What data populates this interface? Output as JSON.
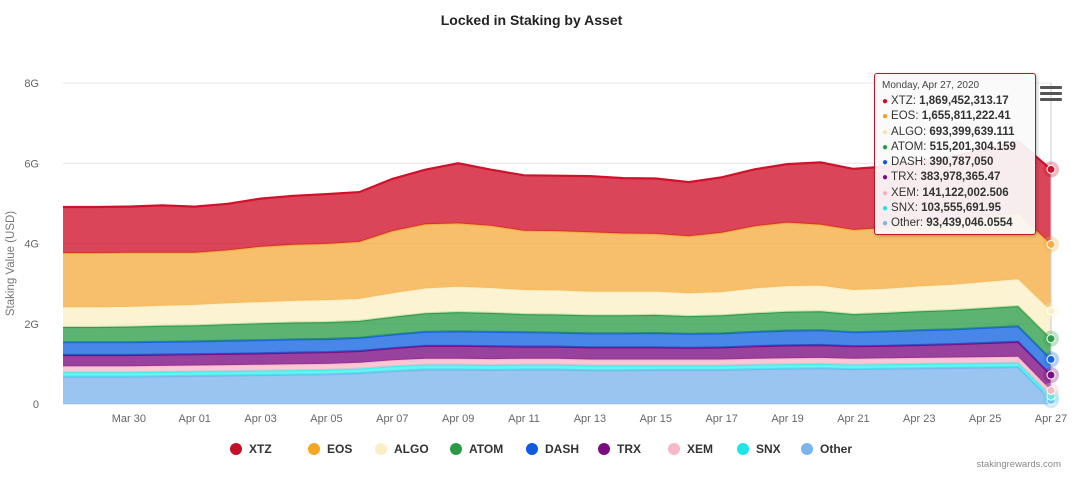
{
  "chart_data": {
    "type": "area",
    "stacked": true,
    "title": "Locked in Staking by Asset",
    "ylabel": "Staking Value (USD)",
    "xlabel": "",
    "ylim": [
      0,
      8000000000
    ],
    "y_ticks": [
      "0",
      "2G",
      "4G",
      "6G",
      "8G"
    ],
    "x_ticks": [
      "Mar 30",
      "Apr 01",
      "Apr 03",
      "Apr 05",
      "Apr 07",
      "Apr 09",
      "Apr 11",
      "Apr 13",
      "Apr 15",
      "Apr 17",
      "Apr 19",
      "Apr 21",
      "Apr 23",
      "Apr 25",
      "Apr 27"
    ],
    "x": [
      "Mar 28",
      "Mar 29",
      "Mar 30",
      "Mar 31",
      "Apr 01",
      "Apr 02",
      "Apr 03",
      "Apr 04",
      "Apr 05",
      "Apr 06",
      "Apr 07",
      "Apr 08",
      "Apr 09",
      "Apr 10",
      "Apr 11",
      "Apr 12",
      "Apr 13",
      "Apr 14",
      "Apr 15",
      "Apr 16",
      "Apr 17",
      "Apr 18",
      "Apr 19",
      "Apr 20",
      "Apr 21",
      "Apr 22",
      "Apr 23",
      "Apr 24",
      "Apr 25",
      "Apr 26",
      "Apr 27"
    ],
    "grid": true,
    "legend_position": "bottom",
    "series": [
      {
        "name": "Other",
        "color": "#7cb5ec",
        "values": [
          0.68,
          0.68,
          0.68,
          0.69,
          0.7,
          0.71,
          0.72,
          0.73,
          0.74,
          0.77,
          0.82,
          0.86,
          0.86,
          0.85,
          0.86,
          0.86,
          0.84,
          0.84,
          0.85,
          0.85,
          0.85,
          0.87,
          0.88,
          0.89,
          0.87,
          0.88,
          0.89,
          0.9,
          0.91,
          0.92,
          0.093
        ]
      },
      {
        "name": "SNX",
        "color": "#3df0f0",
        "values": [
          0.11,
          0.11,
          0.11,
          0.11,
          0.11,
          0.11,
          0.11,
          0.11,
          0.11,
          0.11,
          0.12,
          0.12,
          0.12,
          0.12,
          0.12,
          0.12,
          0.12,
          0.12,
          0.11,
          0.11,
          0.11,
          0.11,
          0.11,
          0.11,
          0.11,
          0.11,
          0.11,
          0.11,
          0.11,
          0.11,
          0.104
        ]
      },
      {
        "name": "XEM",
        "color": "#f7b8c8",
        "values": [
          0.15,
          0.15,
          0.15,
          0.15,
          0.15,
          0.15,
          0.15,
          0.15,
          0.15,
          0.15,
          0.15,
          0.15,
          0.15,
          0.15,
          0.15,
          0.15,
          0.15,
          0.15,
          0.15,
          0.15,
          0.15,
          0.15,
          0.15,
          0.15,
          0.15,
          0.15,
          0.15,
          0.15,
          0.15,
          0.15,
          0.141
        ]
      },
      {
        "name": "TRX",
        "color": "#7b0d82",
        "values": [
          0.28,
          0.28,
          0.28,
          0.28,
          0.28,
          0.28,
          0.28,
          0.29,
          0.29,
          0.29,
          0.3,
          0.32,
          0.32,
          0.32,
          0.3,
          0.3,
          0.3,
          0.3,
          0.3,
          0.29,
          0.3,
          0.31,
          0.32,
          0.32,
          0.31,
          0.31,
          0.32,
          0.33,
          0.35,
          0.37,
          0.384
        ]
      },
      {
        "name": "DASH",
        "color": "#1565e0",
        "values": [
          0.32,
          0.32,
          0.32,
          0.32,
          0.32,
          0.33,
          0.33,
          0.33,
          0.33,
          0.33,
          0.34,
          0.35,
          0.36,
          0.36,
          0.36,
          0.35,
          0.35,
          0.35,
          0.36,
          0.35,
          0.35,
          0.36,
          0.37,
          0.37,
          0.35,
          0.36,
          0.37,
          0.37,
          0.38,
          0.39,
          0.391
        ]
      },
      {
        "name": "ATOM",
        "color": "#2e9e4a",
        "values": [
          0.38,
          0.38,
          0.39,
          0.4,
          0.4,
          0.41,
          0.42,
          0.42,
          0.42,
          0.42,
          0.44,
          0.46,
          0.48,
          0.47,
          0.45,
          0.45,
          0.45,
          0.45,
          0.45,
          0.44,
          0.45,
          0.46,
          0.47,
          0.47,
          0.45,
          0.46,
          0.47,
          0.48,
          0.49,
          0.5,
          0.515
        ]
      },
      {
        "name": "ALGO",
        "color": "#fbefc7",
        "values": [
          0.49,
          0.49,
          0.49,
          0.5,
          0.51,
          0.52,
          0.53,
          0.54,
          0.55,
          0.55,
          0.59,
          0.62,
          0.63,
          0.62,
          0.6,
          0.6,
          0.59,
          0.59,
          0.58,
          0.57,
          0.58,
          0.62,
          0.64,
          0.64,
          0.6,
          0.6,
          0.62,
          0.63,
          0.65,
          0.67,
          0.693
        ]
      },
      {
        "name": "EOS",
        "color": "#f5ad41",
        "values": [
          1.35,
          1.35,
          1.35,
          1.32,
          1.3,
          1.32,
          1.38,
          1.4,
          1.4,
          1.42,
          1.55,
          1.6,
          1.58,
          1.55,
          1.48,
          1.48,
          1.48,
          1.45,
          1.44,
          1.42,
          1.48,
          1.55,
          1.58,
          1.52,
          1.5,
          1.52,
          1.55,
          1.58,
          1.62,
          1.64,
          1.656
        ]
      },
      {
        "name": "XTZ",
        "color": "#d0112b",
        "values": [
          1.15,
          1.15,
          1.15,
          1.18,
          1.15,
          1.16,
          1.2,
          1.22,
          1.24,
          1.24,
          1.3,
          1.36,
          1.5,
          1.4,
          1.38,
          1.38,
          1.4,
          1.38,
          1.38,
          1.35,
          1.38,
          1.42,
          1.46,
          1.55,
          1.52,
          1.53,
          1.56,
          1.62,
          1.68,
          1.8,
          1.869
        ]
      }
    ],
    "tooltip": {
      "date": "Monday, Apr 27, 2020",
      "rows": [
        {
          "name": "XTZ",
          "value": "1,869,452,313.17",
          "color": "#c1122a"
        },
        {
          "name": "EOS",
          "value": "1,655,811,222.41",
          "color": "#f0a020"
        },
        {
          "name": "ALGO",
          "value": "693,399,639.111",
          "color": "#f6e3ad"
        },
        {
          "name": "ATOM",
          "value": "515,201,304.159",
          "color": "#2a9a45"
        },
        {
          "name": "DASH",
          "value": "390,787,050",
          "color": "#0f5ae0"
        },
        {
          "name": "TRX",
          "value": "383,978,365.47",
          "color": "#7a0c80"
        },
        {
          "name": "XEM",
          "value": "141,122,002.506",
          "color": "#f3b2c4"
        },
        {
          "name": "SNX",
          "value": "103,555,691.95",
          "color": "#1ee6e6"
        },
        {
          "name": "Other",
          "value": "93,439,046.0554",
          "color": "#7cb5ec"
        }
      ]
    },
    "legend": [
      {
        "name": "XTZ",
        "color": "#c1122a"
      },
      {
        "name": "EOS",
        "color": "#f5a623"
      },
      {
        "name": "ALGO",
        "color": "#fbefc7"
      },
      {
        "name": "ATOM",
        "color": "#2a9a45"
      },
      {
        "name": "DASH",
        "color": "#0f5ae0"
      },
      {
        "name": "TRX",
        "color": "#7a0c80"
      },
      {
        "name": "XEM",
        "color": "#f7b8c8"
      },
      {
        "name": "SNX",
        "color": "#1ee6e6"
      },
      {
        "name": "Other",
        "color": "#7cb5ec"
      }
    ],
    "credits": "stakingrewards.com"
  }
}
